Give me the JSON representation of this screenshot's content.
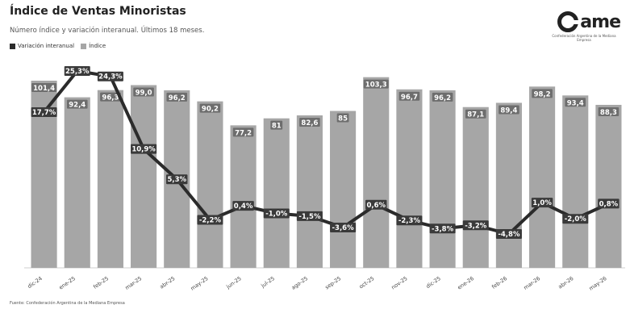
{
  "header": {
    "title": "Índice de Ventas Minoristas",
    "subtitle": "Número índice y variación interanual. Últimos 18 meses."
  },
  "legend": {
    "items": [
      {
        "label": "Variación interanual",
        "color": "#2b2b2b"
      },
      {
        "label": "Índice",
        "color": "#a6a6a6"
      }
    ]
  },
  "logo": {
    "text": "ame",
    "tagline": "Confederación Argentina de la Mediana Empresa"
  },
  "source": "Fuente: Confederación Argentina de la Mediana Empresa",
  "colors": {
    "bar": "#a6a6a6",
    "line": "#2b2b2b",
    "bar_label_bg": "#6d6d6d",
    "line_label_bg": "#3a3a3a"
  },
  "chart_data": {
    "type": "bar",
    "categories": [
      "dic-24",
      "ene-25",
      "feb-25",
      "mar-25",
      "abr-25",
      "may-25",
      "jun-25",
      "jul-25",
      "ago-25",
      "sep-25",
      "oct-25",
      "nov-25",
      "dic-25",
      "ene-26",
      "feb-26",
      "mar-26",
      "abr-26",
      "may-26"
    ],
    "series": [
      {
        "name": "Índice",
        "type": "bar",
        "values": [
          101.4,
          92.4,
          96.3,
          99.0,
          96.2,
          90.2,
          77.2,
          81.0,
          82.6,
          85.0,
          103.3,
          96.7,
          96.2,
          87.1,
          89.4,
          98.2,
          93.4,
          88.3
        ]
      },
      {
        "name": "Variación interanual",
        "type": "line",
        "labels": [
          "17,7%",
          "25,3%",
          "24,3%",
          "10,9%",
          "5,3%",
          "-2,2%",
          "0,4%",
          "-1,0%",
          "-1,5%",
          "-3,6%",
          "0,6%",
          "-2,3%",
          "-3,8%",
          "-3,2%",
          "-4,8%",
          "1,0%",
          "-2,0%",
          "0,8%"
        ],
        "values": [
          17.7,
          25.3,
          24.3,
          10.9,
          5.3,
          -2.2,
          0.4,
          -1.0,
          -1.5,
          -3.6,
          0.6,
          -2.3,
          -3.8,
          -3.2,
          -4.8,
          1.0,
          -2.0,
          0.8
        ]
      }
    ],
    "bar_labels": [
      "101,4",
      "92,4",
      "96,3",
      "99,0",
      "96,2",
      "90,2",
      "77,2",
      "81",
      "82,6",
      "85",
      "103,3",
      "96,7",
      "96,2",
      "87,1",
      "89,4",
      "98,2",
      "93,4",
      "88,3"
    ],
    "grid": false,
    "legend_position": "top-left"
  }
}
